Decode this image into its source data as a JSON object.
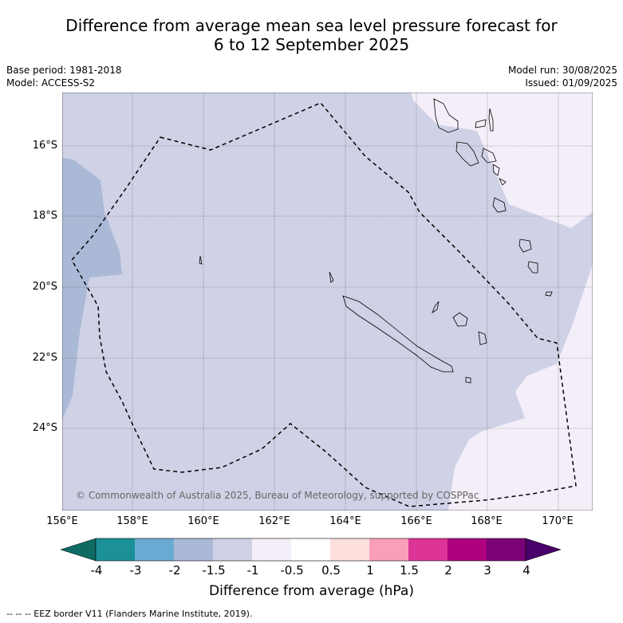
{
  "title": {
    "line1": "Difference from average mean sea level pressure forecast for",
    "line2": "6 to 12 September 2025"
  },
  "meta": {
    "base_period": "Base period: 1981-2018",
    "model": "Model: ACCESS-S2",
    "model_run": "Model run: 30/08/2025",
    "issued": "Issued: 01/09/2025"
  },
  "map": {
    "lat_labels": [
      "16°S",
      "18°S",
      "20°S",
      "22°S",
      "24°S"
    ],
    "lon_labels": [
      "156°E",
      "158°E",
      "160°E",
      "162°E",
      "164°E",
      "166°E",
      "168°E",
      "170°E"
    ],
    "copyright": "© Commonwealth of Australia 2025, Bureau of Meteorology, supported by COSPPac"
  },
  "colorbar": {
    "ticks": [
      "-4",
      "-3",
      "-2",
      "-1.5",
      "-1",
      "-0.5",
      "0.5",
      "1",
      "1.5",
      "2",
      "3",
      "4"
    ],
    "colors": [
      "#0e6b63",
      "#1b9197",
      "#6aaad2",
      "#aab9d6",
      "#cfd1e6",
      "#f3eef7",
      "#ffffff",
      "#fde0dd",
      "#f99fba",
      "#dd3497",
      "#ae017e",
      "#7a0177",
      "#49006a"
    ],
    "label": "Difference from average (hPa)"
  },
  "footnote": "--  --  -- EEZ border V11 (Flanders Marine Institute, 2019)."
}
